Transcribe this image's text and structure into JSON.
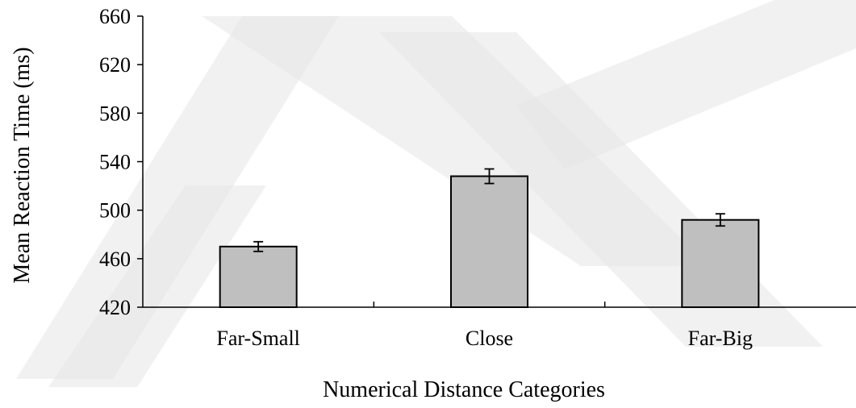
{
  "chart_data": {
    "type": "bar",
    "title": "",
    "xlabel": "Numerical Distance Categories",
    "ylabel": "Mean Reaction Time (ms)",
    "categories": [
      "Far-Small",
      "Close",
      "Far-Big"
    ],
    "values": [
      470,
      528,
      492
    ],
    "error": [
      4,
      6,
      5
    ],
    "ylim": [
      420,
      660
    ],
    "yticks": [
      420,
      460,
      500,
      540,
      580,
      620,
      660
    ],
    "bar_color": "#bfbfbf",
    "grid": false,
    "legend": "none"
  }
}
